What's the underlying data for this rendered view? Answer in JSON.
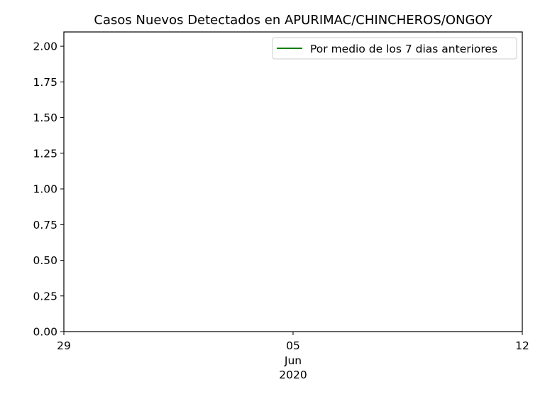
{
  "chart_data": {
    "type": "line",
    "title": "Casos Nuevos Detectados en APURIMAC/CHINCHEROS/ONGOY",
    "xlabel": "",
    "ylabel": "",
    "xlim": [
      "2020-05-29",
      "2020-06-12"
    ],
    "ylim": [
      0,
      2.1
    ],
    "grid": false,
    "legend_position": "top-right",
    "y_ticks": [
      {
        "value": 0.0,
        "label": "0.00"
      },
      {
        "value": 0.25,
        "label": "0.25"
      },
      {
        "value": 0.5,
        "label": "0.50"
      },
      {
        "value": 0.75,
        "label": "0.75"
      },
      {
        "value": 1.0,
        "label": "1.00"
      },
      {
        "value": 1.25,
        "label": "1.25"
      },
      {
        "value": 1.5,
        "label": "1.50"
      },
      {
        "value": 1.75,
        "label": "1.75"
      },
      {
        "value": 2.0,
        "label": "2.00"
      }
    ],
    "x_ticks": [
      {
        "date": "2020-05-29",
        "label": "29"
      },
      {
        "date": "2020-06-05",
        "label": "05",
        "sublabels": [
          "Jun",
          "2020"
        ]
      },
      {
        "date": "2020-06-12",
        "label": "12"
      }
    ],
    "series": [
      {
        "name": "Por medio de los 7 dias anteriores",
        "color": "#008000",
        "x": [],
        "y": []
      }
    ]
  }
}
